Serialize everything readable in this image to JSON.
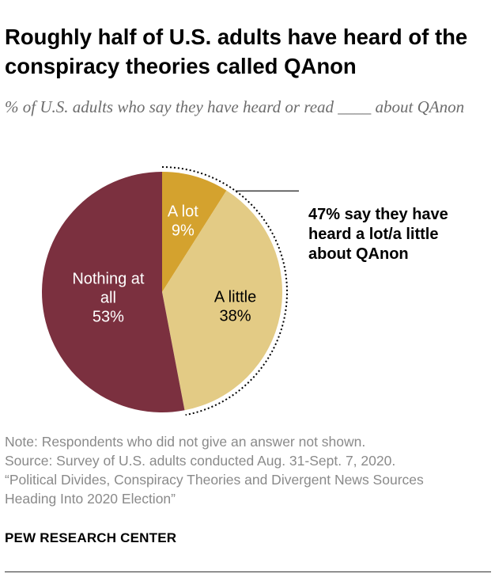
{
  "title": "Roughly half of U.S. adults have heard of the conspiracy theories called QAnon",
  "subtitle": "% of U.S. adults who say they have heard or read ____ about QAnon",
  "chart_data": {
    "type": "pie",
    "slices": [
      {
        "label_lines": [
          "A lot"
        ],
        "value": 9,
        "value_label": "9%",
        "color": "#d4a22e",
        "text_color": "#ffffff"
      },
      {
        "label_lines": [
          "A little"
        ],
        "value": 38,
        "value_label": "38%",
        "color": "#e3cb85",
        "text_color": "#000000"
      },
      {
        "label_lines": [
          "Nothing at",
          "all"
        ],
        "value": 53,
        "value_label": "53%",
        "color": "#7b303f",
        "text_color": "#ffffff"
      }
    ],
    "annotation": {
      "lines": [
        "47% say they have",
        "heard a lot/a little",
        "about QAnon"
      ],
      "bracket": "dotted arc spanning A lot and A little"
    }
  },
  "notes": [
    "Note: Respondents who did not give an answer not shown.",
    "Source: Survey of U.S. adults conducted Aug. 31-Sept. 7, 2020.",
    "“Political Divides, Conspiracy Theories and Divergent News Sources",
    "Heading Into 2020 Election”"
  ],
  "brand": "PEW RESEARCH CENTER"
}
